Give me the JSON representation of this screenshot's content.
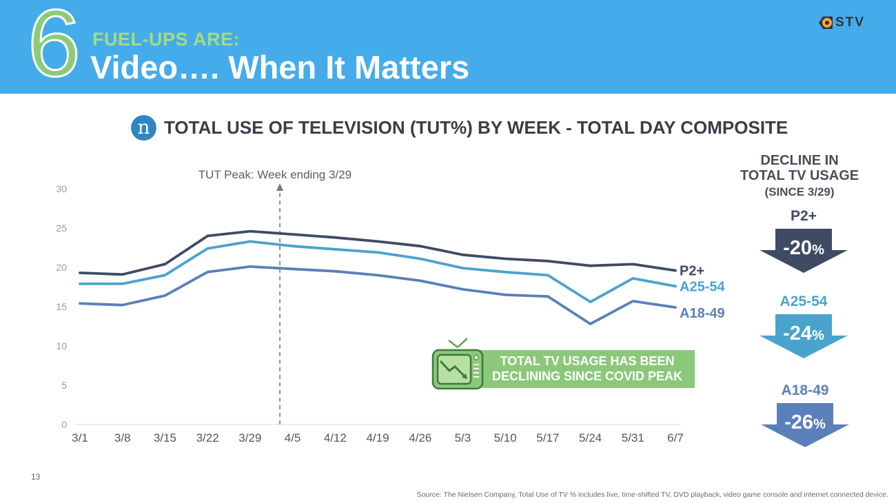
{
  "header": {
    "number": "6",
    "subtitle": "FUEL-UPS ARE:",
    "title": "Video…. When It Matters",
    "logo_text": "STV",
    "logo_icon": "gstv-logo-icon"
  },
  "chart_title": {
    "badge_text": "n",
    "text": "TOTAL USE OF TELEVISION (TUT%) BY WEEK - TOTAL DAY COMPOSITE"
  },
  "chart_data": {
    "type": "line",
    "categories": [
      "3/1",
      "3/8",
      "3/15",
      "3/22",
      "3/29",
      "4/5",
      "4/12",
      "4/19",
      "4/26",
      "5/3",
      "5/10",
      "5/17",
      "5/24",
      "5/31",
      "6/7"
    ],
    "ylim": [
      0,
      30
    ],
    "yticks": [
      0,
      5,
      10,
      15,
      20,
      25,
      30
    ],
    "grid": false,
    "series": [
      {
        "name": "P2+",
        "color": "#3f4b63",
        "values": [
          19.3,
          19.1,
          20.4,
          24.0,
          24.6,
          24.2,
          23.8,
          23.3,
          22.7,
          21.6,
          21.1,
          20.8,
          20.2,
          20.4,
          19.6
        ]
      },
      {
        "name": "A25-54",
        "color": "#4aa3cc",
        "values": [
          17.9,
          17.9,
          19.0,
          22.4,
          23.3,
          22.7,
          22.3,
          21.9,
          21.1,
          19.9,
          19.4,
          19.0,
          15.6,
          18.6,
          17.6
        ]
      },
      {
        "name": "A18-49",
        "color": "#5b7fb9",
        "values": [
          15.4,
          15.2,
          16.4,
          19.4,
          20.1,
          19.8,
          19.5,
          19.0,
          18.3,
          17.2,
          16.5,
          16.3,
          12.8,
          15.7,
          14.9
        ]
      }
    ],
    "annotation": {
      "text": "TUT Peak:  Week ending 3/29",
      "category": "3/29",
      "offset": 0.7
    }
  },
  "decline": {
    "heading_line1": "DECLINE IN",
    "heading_line2": "TOTAL TV USAGE",
    "heading_line3": "(SINCE 3/29)",
    "items": [
      {
        "label": "P2+",
        "value": "-20",
        "unit": "%",
        "color": "#3f4b63"
      },
      {
        "label": "A25-54",
        "value": "-24",
        "unit": "%",
        "color": "#4aa3cc"
      },
      {
        "label": "A18-49",
        "value": "-26",
        "unit": "%",
        "color": "#5b7fb9"
      }
    ]
  },
  "callout": {
    "line1": "TOTAL TV USAGE HAS BEEN",
    "line2": "DECLINING SINCE COVID PEAK",
    "icon": "tv-declining-icon"
  },
  "footer": {
    "page_number": "13",
    "source": "Source: The Nielsen Company, Total Use of TV % includes live, time-shifted TV, DVD playback, video game console and internet connected device."
  }
}
